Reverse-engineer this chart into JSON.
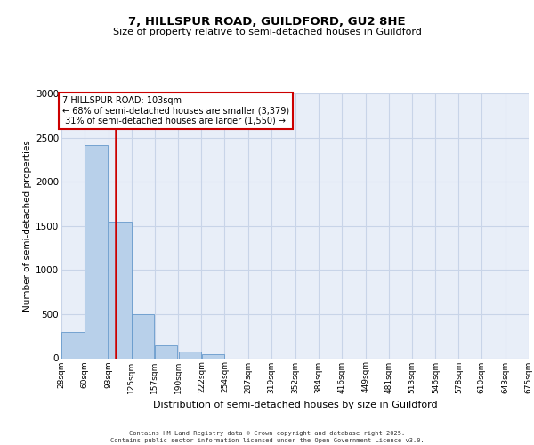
{
  "title_line1": "7, HILLSPUR ROAD, GUILDFORD, GU2 8HE",
  "title_line2": "Size of property relative to semi-detached houses in Guildford",
  "xlabel": "Distribution of semi-detached houses by size in Guildford",
  "ylabel": "Number of semi-detached properties",
  "bins": [
    28,
    60,
    93,
    125,
    157,
    190,
    222,
    254,
    287,
    319,
    352,
    384,
    416,
    449,
    481,
    513,
    546,
    578,
    610,
    643,
    675
  ],
  "bar_heights": [
    300,
    2420,
    1550,
    500,
    150,
    80,
    50,
    0,
    0,
    0,
    0,
    0,
    0,
    0,
    0,
    0,
    0,
    0,
    0,
    0
  ],
  "bar_color": "#b8d0ea",
  "bar_edge_color": "#6699cc",
  "property_size": 103,
  "pct_smaller": 68,
  "n_smaller": 3379,
  "pct_larger": 31,
  "n_larger": 1550,
  "red_color": "#cc0000",
  "ylim": [
    0,
    3000
  ],
  "yticks": [
    0,
    500,
    1000,
    1500,
    2000,
    2500,
    3000
  ],
  "grid_color": "#c8d4e8",
  "bg_color": "#e8eef8",
  "footer_line1": "Contains HM Land Registry data © Crown copyright and database right 2025.",
  "footer_line2": "Contains public sector information licensed under the Open Government Licence v3.0."
}
